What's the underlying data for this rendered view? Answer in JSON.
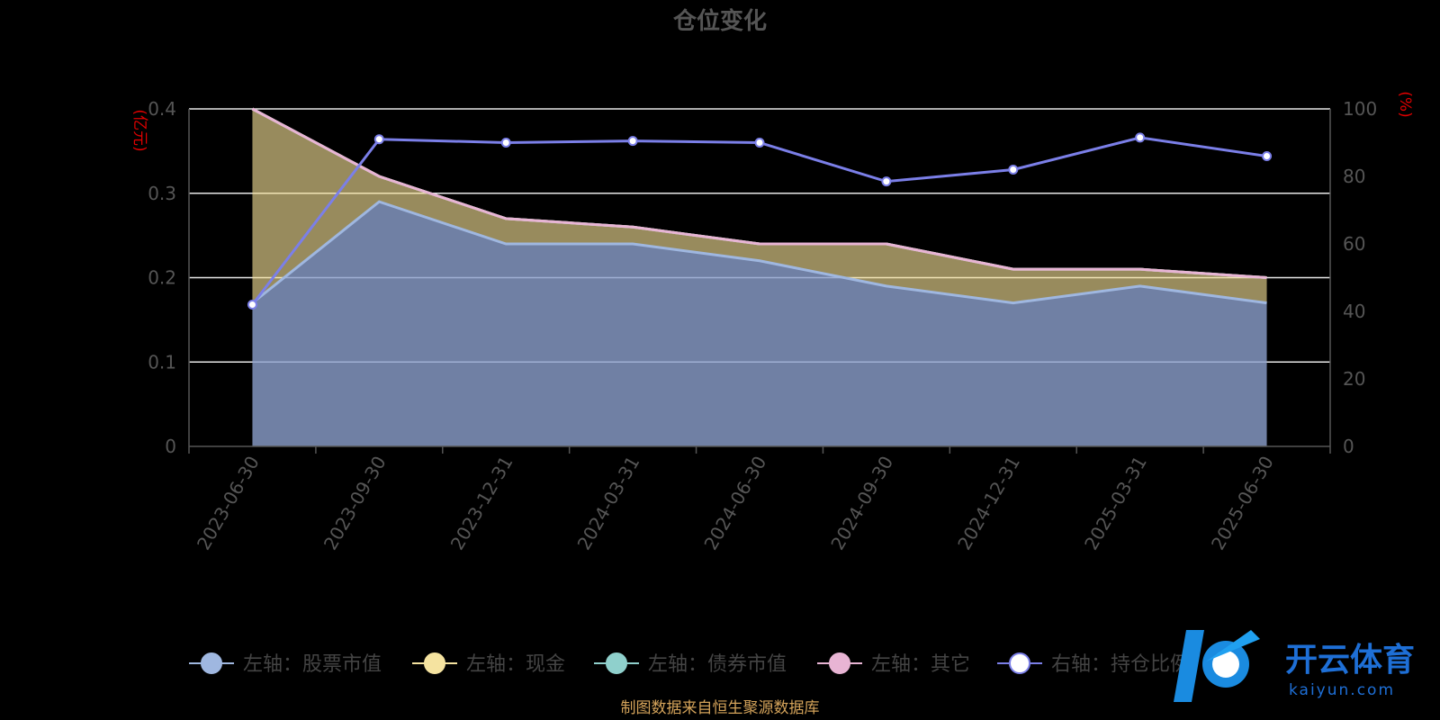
{
  "chart_data": {
    "type": "area",
    "title": "仓位变化",
    "categories": [
      "2023-06-30",
      "2023-09-30",
      "2023-12-31",
      "2024-03-31",
      "2024-06-30",
      "2024-09-30",
      "2024-12-31",
      "2025-03-31",
      "2025-06-30"
    ],
    "left_axis": {
      "unit": "(亿元)",
      "range": [
        0,
        0.4
      ],
      "ticks": [
        "0",
        "0.1",
        "0.2",
        "0.3",
        "0.4"
      ]
    },
    "right_axis": {
      "unit": "(%)",
      "range": [
        0,
        100
      ],
      "ticks": [
        "0",
        "20",
        "40",
        "60",
        "80",
        "100"
      ]
    },
    "series": [
      {
        "name": "左轴：股票市值",
        "axis": "left",
        "stack": true,
        "color": "#9fb7e0",
        "values": [
          0.17,
          0.29,
          0.24,
          0.24,
          0.22,
          0.19,
          0.17,
          0.19,
          0.17
        ]
      },
      {
        "name": "左轴：现金",
        "axis": "left",
        "stack": true,
        "color": "#f5e3a0",
        "values": [
          0.23,
          0.03,
          0.03,
          0.02,
          0.02,
          0.05,
          0.04,
          0.02,
          0.03
        ]
      },
      {
        "name": "左轴：债券市值",
        "axis": "left",
        "stack": true,
        "color": "#8fd0cc",
        "values": [
          0,
          0,
          0,
          0,
          0,
          0,
          0,
          0,
          0
        ]
      },
      {
        "name": "左轴：其它",
        "axis": "left",
        "stack": true,
        "color": "#e8b4d4",
        "values": [
          0,
          0,
          0,
          0,
          0,
          0,
          0,
          0,
          0
        ]
      },
      {
        "name": "右轴：持仓比例",
        "axis": "right",
        "type": "line",
        "color": "#7b7fe8",
        "values": [
          42,
          91,
          90,
          90.5,
          90,
          78.5,
          82,
          91.5,
          86
        ]
      }
    ],
    "grid": true,
    "legend_position": "bottom"
  },
  "footer": {
    "source": "制图数据来自恒生聚源数据库"
  },
  "watermark": {
    "brand": "开云体育",
    "url": "kaiyun.com"
  }
}
